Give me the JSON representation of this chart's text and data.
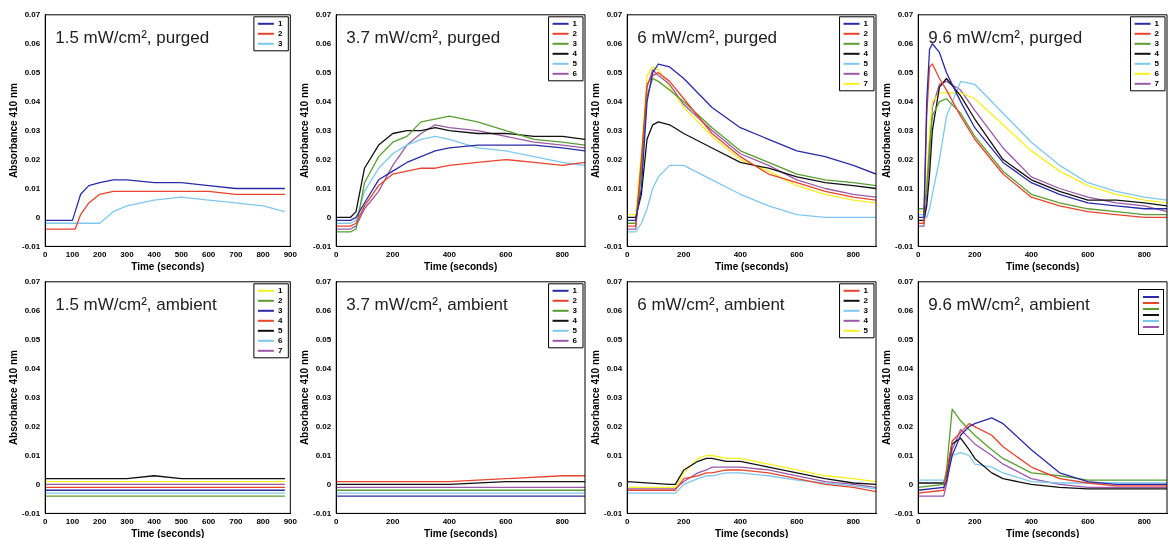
{
  "chart_data": [
    {
      "type": "line",
      "title": "1.5 mW/cm², purged",
      "xlabel": "Time (seconds)",
      "ylabel": "Absorbance 410 nm",
      "legend": "top right",
      "xlim": [
        0,
        900
      ],
      "xticks": [
        0,
        100,
        200,
        300,
        400,
        500,
        600,
        700,
        800,
        900
      ],
      "ylim": [
        -0.01,
        0.07
      ],
      "yticks": [
        -0.01,
        0,
        0.01,
        0.02,
        0.03,
        0.04,
        0.05,
        0.06,
        0.07
      ],
      "x": [
        0,
        50,
        100,
        110,
        130,
        160,
        200,
        250,
        300,
        400,
        500,
        600,
        700,
        800,
        880
      ],
      "series": [
        {
          "name": "1",
          "color": "#2b2ba8",
          "values": [
            -0.001,
            -0.001,
            -0.001,
            0.002,
            0.008,
            0.011,
            0.012,
            0.013,
            0.013,
            0.012,
            0.012,
            0.011,
            0.01,
            0.01,
            0.01
          ]
        },
        {
          "name": "2",
          "color": "#e8452c",
          "values": [
            -0.004,
            -0.004,
            -0.004,
            -0.004,
            0.001,
            0.005,
            0.008,
            0.009,
            0.009,
            0.009,
            0.009,
            0.009,
            0.008,
            0.008,
            0.008
          ]
        },
        {
          "name": "3",
          "color": "#7ec8ee",
          "values": [
            -0.002,
            -0.002,
            -0.002,
            -0.002,
            -0.002,
            -0.002,
            -0.002,
            0.002,
            0.004,
            0.006,
            0.007,
            0.006,
            0.005,
            0.004,
            0.002
          ]
        }
      ]
    },
    {
      "type": "line",
      "title": "3.7 mW/cm², purged",
      "xlabel": "Time (seconds)",
      "ylabel": "Absorbance 410 nm",
      "legend": "top right",
      "xlim": [
        0,
        880
      ],
      "xticks": [
        0,
        200,
        400,
        600,
        800
      ],
      "ylim": [
        -0.01,
        0.07
      ],
      "yticks": [
        -0.01,
        0,
        0.01,
        0.02,
        0.03,
        0.04,
        0.05,
        0.06,
        0.07
      ],
      "x": [
        0,
        50,
        70,
        100,
        150,
        200,
        250,
        300,
        350,
        400,
        500,
        600,
        700,
        800,
        880
      ],
      "series": [
        {
          "name": "1",
          "color": "#2b2ba8",
          "values": [
            -0.001,
            -0.001,
            0.0,
            0.005,
            0.013,
            0.016,
            0.019,
            0.021,
            0.023,
            0.024,
            0.025,
            0.025,
            0.025,
            0.024,
            0.023
          ]
        },
        {
          "name": "2",
          "color": "#e8452c",
          "values": [
            -0.003,
            -0.003,
            -0.002,
            0.004,
            0.011,
            0.015,
            0.016,
            0.017,
            0.017,
            0.018,
            0.019,
            0.02,
            0.019,
            0.018,
            0.019
          ]
        },
        {
          "name": "3",
          "color": "#5a9e32",
          "values": [
            -0.005,
            -0.005,
            -0.004,
            0.012,
            0.021,
            0.026,
            0.028,
            0.033,
            0.034,
            0.035,
            0.033,
            0.03,
            0.027,
            0.026,
            0.025
          ]
        },
        {
          "name": "4",
          "color": "#111111",
          "values": [
            0.0,
            0.0,
            0.002,
            0.017,
            0.025,
            0.029,
            0.03,
            0.03,
            0.031,
            0.03,
            0.029,
            0.029,
            0.028,
            0.028,
            0.027
          ]
        },
        {
          "name": "5",
          "color": "#7ec8ee",
          "values": [
            -0.002,
            -0.002,
            -0.001,
            0.009,
            0.017,
            0.022,
            0.025,
            0.027,
            0.028,
            0.027,
            0.024,
            0.023,
            0.021,
            0.019,
            0.018
          ]
        },
        {
          "name": "6",
          "color": "#9a5aa8",
          "values": [
            -0.004,
            -0.004,
            -0.003,
            0.003,
            0.009,
            0.018,
            0.025,
            0.029,
            0.032,
            0.031,
            0.03,
            0.028,
            0.026,
            0.025,
            0.024
          ]
        }
      ]
    },
    {
      "type": "line",
      "title": "6 mW/cm², purged",
      "xlabel": "Time (seconds)",
      "ylabel": "Absorbance 410 nm",
      "legend": "top right",
      "xlim": [
        0,
        880
      ],
      "xticks": [
        0,
        200,
        400,
        600,
        800
      ],
      "ylim": [
        -0.01,
        0.07
      ],
      "yticks": [
        -0.01,
        0,
        0.01,
        0.02,
        0.03,
        0.04,
        0.05,
        0.06,
        0.07
      ],
      "x": [
        0,
        30,
        50,
        70,
        90,
        110,
        150,
        200,
        300,
        400,
        500,
        600,
        700,
        800,
        880
      ],
      "series": [
        {
          "name": "1",
          "color": "#2b2ba8",
          "values": [
            -0.001,
            -0.001,
            0.01,
            0.04,
            0.05,
            0.053,
            0.052,
            0.048,
            0.038,
            0.031,
            0.027,
            0.023,
            0.021,
            0.018,
            0.015
          ]
        },
        {
          "name": "2",
          "color": "#e8452c",
          "values": [
            -0.003,
            -0.003,
            0.02,
            0.046,
            0.049,
            0.05,
            0.047,
            0.041,
            0.029,
            0.021,
            0.015,
            0.012,
            0.009,
            0.007,
            0.006
          ]
        },
        {
          "name": "3",
          "color": "#5a9e32",
          "values": [
            -0.002,
            -0.002,
            0.015,
            0.042,
            0.048,
            0.047,
            0.044,
            0.04,
            0.031,
            0.023,
            0.019,
            0.015,
            0.013,
            0.012,
            0.011
          ]
        },
        {
          "name": "4",
          "color": "#111111",
          "values": [
            0.0,
            0.0,
            0.008,
            0.027,
            0.032,
            0.033,
            0.032,
            0.029,
            0.024,
            0.019,
            0.017,
            0.014,
            0.012,
            0.011,
            0.01
          ]
        },
        {
          "name": "5",
          "color": "#7ec8ee",
          "values": [
            -0.005,
            -0.005,
            -0.002,
            0.003,
            0.01,
            0.014,
            0.018,
            0.018,
            0.013,
            0.008,
            0.004,
            0.001,
            0.0,
            0.0,
            0.0
          ]
        },
        {
          "name": "6",
          "color": "#9a5aa8",
          "values": [
            -0.004,
            -0.004,
            0.018,
            0.045,
            0.051,
            0.049,
            0.046,
            0.039,
            0.03,
            0.022,
            0.018,
            0.013,
            0.01,
            0.008,
            0.007
          ]
        },
        {
          "name": "7",
          "color": "#f5f020",
          "values": [
            0.001,
            0.001,
            0.022,
            0.049,
            0.052,
            0.051,
            0.045,
            0.038,
            0.028,
            0.02,
            0.016,
            0.011,
            0.008,
            0.006,
            0.005
          ]
        }
      ]
    },
    {
      "type": "line",
      "title": "9.6 mW/cm², purged",
      "xlabel": "Time (seconds)",
      "ylabel": "Absorbance 410 nm",
      "legend": "top right",
      "xlim": [
        0,
        880
      ],
      "xticks": [
        0,
        200,
        400,
        600,
        800
      ],
      "ylim": [
        -0.01,
        0.07
      ],
      "yticks": [
        -0.01,
        0,
        0.01,
        0.02,
        0.03,
        0.04,
        0.05,
        0.06,
        0.07
      ],
      "x": [
        0,
        20,
        30,
        40,
        50,
        75,
        100,
        150,
        200,
        300,
        400,
        500,
        600,
        700,
        800,
        880
      ],
      "series": [
        {
          "name": "1",
          "color": "#2b2ba8",
          "values": [
            0.0,
            0.0,
            0.04,
            0.058,
            0.06,
            0.057,
            0.05,
            0.04,
            0.031,
            0.019,
            0.012,
            0.008,
            0.005,
            0.004,
            0.003,
            0.003
          ]
        },
        {
          "name": "2",
          "color": "#e8452c",
          "values": [
            -0.002,
            -0.002,
            0.035,
            0.052,
            0.053,
            0.048,
            0.044,
            0.035,
            0.027,
            0.015,
            0.007,
            0.004,
            0.002,
            0.001,
            0.0,
            0.0
          ]
        },
        {
          "name": "3",
          "color": "#5a9e32",
          "values": [
            0.003,
            0.003,
            0.01,
            0.025,
            0.035,
            0.04,
            0.041,
            0.036,
            0.028,
            0.016,
            0.008,
            0.005,
            0.003,
            0.002,
            0.001,
            0.001
          ]
        },
        {
          "name": "4",
          "color": "#111111",
          "values": [
            -0.001,
            -0.001,
            0.004,
            0.015,
            0.03,
            0.045,
            0.048,
            0.042,
            0.034,
            0.02,
            0.013,
            0.009,
            0.006,
            0.006,
            0.005,
            0.004
          ]
        },
        {
          "name": "5",
          "color": "#7ec8ee",
          "values": [
            0.001,
            0.001,
            0.0,
            0.003,
            0.008,
            0.02,
            0.035,
            0.047,
            0.046,
            0.036,
            0.026,
            0.018,
            0.012,
            0.009,
            0.007,
            0.006
          ]
        },
        {
          "name": "6",
          "color": "#f5f020",
          "values": [
            0.002,
            0.002,
            0.012,
            0.03,
            0.04,
            0.043,
            0.043,
            0.043,
            0.041,
            0.032,
            0.023,
            0.016,
            0.011,
            0.008,
            0.006,
            0.005
          ]
        },
        {
          "name": "7",
          "color": "#9a5aa8",
          "values": [
            -0.003,
            -0.003,
            0.008,
            0.022,
            0.038,
            0.046,
            0.047,
            0.044,
            0.037,
            0.024,
            0.014,
            0.01,
            0.007,
            0.005,
            0.004,
            0.002
          ]
        }
      ]
    },
    {
      "type": "line",
      "title": "1.5 mW/cm², ambient",
      "xlabel": "Time (seconds)",
      "ylabel": "Absorbance 410 nm",
      "legend": "top right",
      "xlim": [
        0,
        900
      ],
      "xticks": [
        0,
        100,
        200,
        300,
        400,
        500,
        600,
        700,
        800,
        900
      ],
      "ylim": [
        -0.01,
        0.07
      ],
      "yticks": [
        -0.01,
        0,
        0.01,
        0.02,
        0.03,
        0.04,
        0.05,
        0.06,
        0.07
      ],
      "x": [
        0,
        100,
        200,
        300,
        400,
        500,
        600,
        700,
        800,
        880
      ],
      "series": [
        {
          "name": "1",
          "color": "#f5f020",
          "values": [
            0.001,
            0.001,
            0.001,
            0.001,
            0.001,
            0.001,
            0.001,
            0.001,
            0.001,
            0.001
          ]
        },
        {
          "name": "2",
          "color": "#5a9e32",
          "values": [
            -0.004,
            -0.004,
            -0.004,
            -0.004,
            -0.004,
            -0.004,
            -0.004,
            -0.004,
            -0.004,
            -0.004
          ]
        },
        {
          "name": "3",
          "color": "#2b2ba8",
          "values": [
            -0.002,
            -0.002,
            -0.002,
            -0.002,
            -0.002,
            -0.002,
            -0.002,
            -0.002,
            -0.002,
            -0.002
          ]
        },
        {
          "name": "4",
          "color": "#e8452c",
          "values": [
            -0.001,
            -0.001,
            -0.001,
            -0.001,
            -0.001,
            -0.001,
            -0.001,
            -0.001,
            -0.001,
            -0.001
          ]
        },
        {
          "name": "5",
          "color": "#111111",
          "values": [
            0.002,
            0.002,
            0.002,
            0.002,
            0.003,
            0.002,
            0.002,
            0.002,
            0.002,
            0.002
          ]
        },
        {
          "name": "6",
          "color": "#7ec8ee",
          "values": [
            -0.003,
            -0.003,
            -0.003,
            -0.003,
            -0.003,
            -0.003,
            -0.003,
            -0.003,
            -0.003,
            -0.003
          ]
        },
        {
          "name": "7",
          "color": "#9a5aa8",
          "values": [
            0.0,
            0.0,
            0.0,
            0.0,
            0.0,
            0.0,
            0.0,
            0.0,
            0.0,
            0.0
          ]
        }
      ]
    },
    {
      "type": "line",
      "title": "3.7 mW/cm², ambient",
      "xlabel": "Time (seconds)",
      "ylabel": "Absorbance 410 nm",
      "legend": "top right",
      "xlim": [
        0,
        880
      ],
      "xticks": [
        0,
        200,
        400,
        600,
        800
      ],
      "ylim": [
        -0.01,
        0.07
      ],
      "yticks": [
        -0.01,
        0,
        0.01,
        0.02,
        0.03,
        0.04,
        0.05,
        0.06,
        0.07
      ],
      "x": [
        0,
        200,
        400,
        600,
        800,
        880
      ],
      "series": [
        {
          "name": "1",
          "color": "#2b2ba8",
          "values": [
            -0.004,
            -0.004,
            -0.004,
            -0.004,
            -0.004,
            -0.004
          ]
        },
        {
          "name": "2",
          "color": "#e8452c",
          "values": [
            0.001,
            0.001,
            0.001,
            0.002,
            0.003,
            0.003
          ]
        },
        {
          "name": "3",
          "color": "#5a9e32",
          "values": [
            -0.002,
            -0.002,
            -0.002,
            -0.002,
            -0.002,
            -0.002
          ]
        },
        {
          "name": "4",
          "color": "#111111",
          "values": [
            0.0,
            0.0,
            0.0,
            0.001,
            0.001,
            0.001
          ]
        },
        {
          "name": "5",
          "color": "#7ec8ee",
          "values": [
            -0.003,
            -0.003,
            -0.003,
            -0.003,
            -0.003,
            -0.003
          ]
        },
        {
          "name": "6",
          "color": "#9a5aa8",
          "values": [
            -0.001,
            -0.001,
            -0.001,
            -0.001,
            -0.001,
            -0.001
          ]
        }
      ]
    },
    {
      "type": "line",
      "title": "6 mW/cm², ambient",
      "xlabel": "Time (seconds)",
      "ylabel": "Absorbance 410 nm",
      "legend": "top right",
      "xlim": [
        0,
        880
      ],
      "xticks": [
        0,
        200,
        400,
        600,
        800
      ],
      "ylim": [
        -0.01,
        0.07
      ],
      "yticks": [
        -0.01,
        0,
        0.01,
        0.02,
        0.03,
        0.04,
        0.05,
        0.06,
        0.07
      ],
      "x": [
        0,
        150,
        170,
        200,
        250,
        280,
        300,
        350,
        400,
        500,
        600,
        700,
        800,
        880
      ],
      "series": [
        {
          "name": "1",
          "color": "#e8452c",
          "values": [
            -0.002,
            -0.002,
            -0.002,
            0.002,
            0.003,
            0.004,
            0.004,
            0.005,
            0.005,
            0.004,
            0.002,
            0.0,
            -0.001,
            -0.0025
          ]
        },
        {
          "name": "2",
          "color": "#111111",
          "values": [
            0.001,
            0.0,
            0.0,
            0.005,
            0.008,
            0.009,
            0.009,
            0.008,
            0.008,
            0.006,
            0.004,
            0.002,
            0.0005,
            0.0
          ]
        },
        {
          "name": "3",
          "color": "#7ec8ee",
          "values": [
            -0.003,
            -0.003,
            -0.003,
            0.0,
            0.002,
            0.003,
            0.003,
            0.004,
            0.004,
            0.003,
            0.0015,
            0.0005,
            -0.0005,
            -0.0015
          ]
        },
        {
          "name": "4",
          "color": "#9a5aa8",
          "values": [
            -0.0015,
            -0.0015,
            -0.0015,
            0.001,
            0.004,
            0.005,
            0.006,
            0.006,
            0.006,
            0.005,
            0.003,
            0.001,
            0.0,
            -0.001
          ]
        },
        {
          "name": "5",
          "color": "#f5f020",
          "values": [
            -0.001,
            -0.001,
            -0.001,
            0.004,
            0.009,
            0.01,
            0.01,
            0.009,
            0.009,
            0.007,
            0.005,
            0.003,
            0.002,
            0.001
          ]
        }
      ]
    },
    {
      "type": "line",
      "title": "9.6 mW/cm², ambient",
      "xlabel": "Time (seconds)",
      "ylabel": "Absorbance 410 nm",
      "legend": "top right",
      "xlim": [
        0,
        880
      ],
      "xticks": [
        0,
        200,
        400,
        600,
        800
      ],
      "ylim": [
        -0.01,
        0.07
      ],
      "yticks": [
        -0.01,
        0,
        0.01,
        0.02,
        0.03,
        0.04,
        0.05,
        0.06,
        0.07
      ],
      "x": [
        0,
        90,
        100,
        120,
        150,
        180,
        200,
        260,
        300,
        400,
        500,
        600,
        700,
        800,
        880
      ],
      "series": [
        {
          "color": "#2b2ba8",
          "values": [
            -0.002,
            -0.001,
            0.001,
            0.01,
            0.017,
            0.02,
            0.021,
            0.023,
            0.021,
            0.012,
            0.004,
            0.001,
            0.0,
            0.0,
            0.0
          ]
        },
        {
          "color": "#e8452c",
          "values": [
            -0.003,
            -0.002,
            0.004,
            0.015,
            0.018,
            0.021,
            0.02,
            0.017,
            0.013,
            0.006,
            0.002,
            0.0005,
            -0.0005,
            -0.0005,
            -0.0005
          ]
        },
        {
          "color": "#5a9e32",
          "values": [
            -0.001,
            0.0,
            0.005,
            0.026,
            0.022,
            0.019,
            0.017,
            0.012,
            0.009,
            0.004,
            0.003,
            0.0015,
            0.0015,
            0.0015,
            0.0015
          ]
        },
        {
          "color": "#111111",
          "values": [
            0.0005,
            0.0005,
            0.003,
            0.014,
            0.016,
            0.012,
            0.009,
            0.004,
            0.002,
            0.0,
            -0.001,
            -0.0015,
            -0.0015,
            -0.0015,
            -0.0015
          ]
        },
        {
          "color": "#7ec8ee",
          "values": [
            0.0015,
            0.0015,
            0.002,
            0.01,
            0.011,
            0.01,
            0.007,
            0.006,
            0.004,
            0.001,
            0.0005,
            0.0005,
            0.0005,
            0.0005,
            0.0005
          ]
        },
        {
          "color": "#9a5aa8",
          "values": [
            -0.004,
            -0.004,
            0.0,
            0.012,
            0.019,
            0.016,
            0.014,
            0.01,
            0.007,
            0.002,
            0.0,
            -0.001,
            -0.001,
            -0.001,
            -0.001
          ]
        }
      ]
    }
  ]
}
